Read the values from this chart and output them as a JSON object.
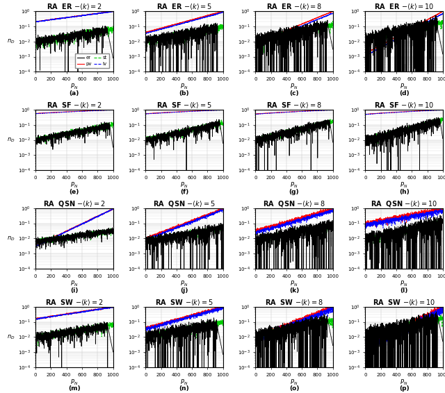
{
  "network_types": [
    "ER",
    "SF",
    "QSN",
    "SW"
  ],
  "k_values": [
    2,
    5,
    8,
    10
  ],
  "subplot_labels": [
    "(a)",
    "(b)",
    "(c)",
    "(d)",
    "(e)",
    "(f)",
    "(g)",
    "(h)",
    "(i)",
    "(j)",
    "(k)",
    "(l)",
    "(m)",
    "(n)",
    "(o)",
    "(p)"
  ],
  "line_colors": {
    "er": "#000000",
    "pv": "#ff0000",
    "st": "#00cc00",
    "iv": "#0000ff"
  },
  "xlabel": "P_N",
  "ylabel": "n_D",
  "figsize": [
    6.4,
    5.66
  ],
  "dpi": 100,
  "background_color": "#ffffff",
  "grid_color": "#c8c8c8"
}
